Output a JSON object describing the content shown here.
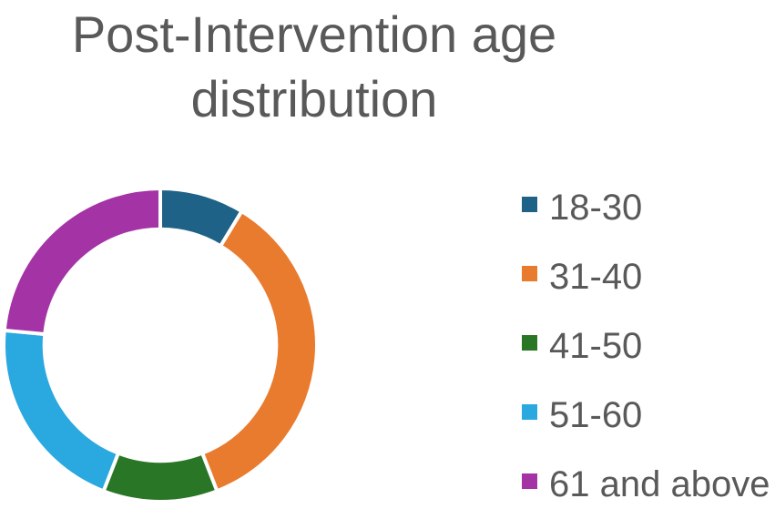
{
  "chart_data": {
    "type": "pie",
    "subtype": "donut",
    "title": "Post-Intervention age distribution",
    "categories": [
      "18-30",
      "31-40",
      "41-50",
      "51-60",
      "61 and above"
    ],
    "values_percent": [
      8.7,
      35.4,
      11.8,
      20.6,
      23.5
    ],
    "colors": [
      "#1f6287",
      "#e97b2e",
      "#2a7627",
      "#2aa8e0",
      "#a433a6"
    ],
    "start_angle_deg": 0,
    "direction": "clockwise",
    "donut_hole_ratio": 0.74,
    "slice_border_color": "#ffffff",
    "legend_position": "right",
    "data_labels_visible": false,
    "title_color": "#595959",
    "legend_text_color": "#595959",
    "background_color": "#ffffff"
  }
}
